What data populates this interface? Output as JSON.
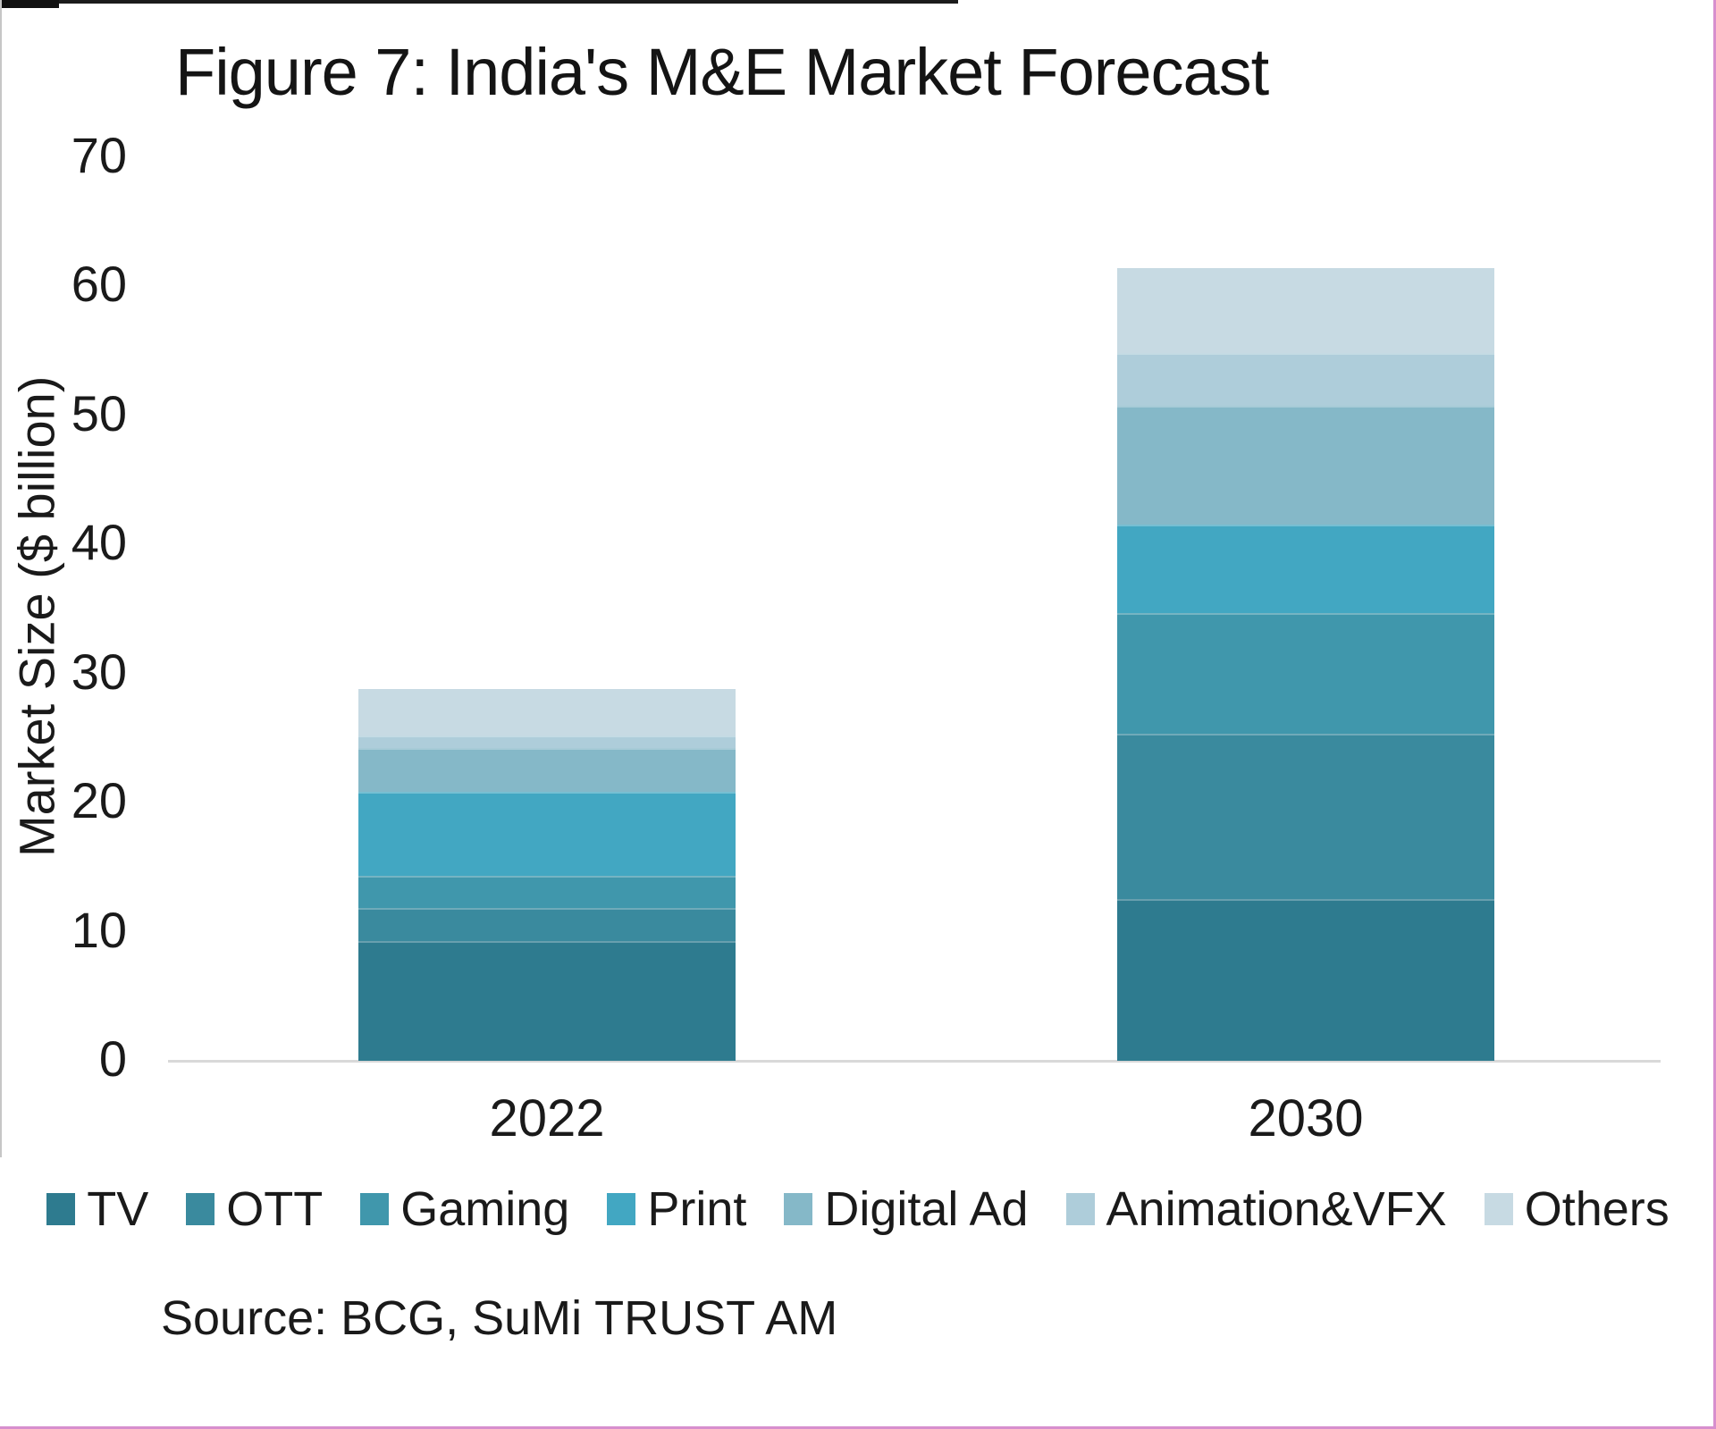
{
  "title": "Figure 7: India's M&E Market Forecast",
  "source": "Source: BCG, SuMi TRUST AM",
  "chart_data": {
    "type": "bar",
    "stacked": true,
    "title": "Figure 7: India's M&E Market Forecast",
    "xlabel": "",
    "ylabel": "Market Size ($ billion)",
    "ylim": [
      0,
      70
    ],
    "yticks": [
      0,
      10,
      20,
      30,
      40,
      50,
      60,
      70
    ],
    "grid": false,
    "legend_position": "bottom",
    "categories": [
      "2022",
      "2030"
    ],
    "series": [
      {
        "name": "TV",
        "color": "#2e7b8f",
        "values": [
          9.3,
          12.5
        ]
      },
      {
        "name": "OTT",
        "color": "#3a8a9e",
        "values": [
          2.5,
          12.8
        ]
      },
      {
        "name": "Gaming",
        "color": "#4097ac",
        "values": [
          2.5,
          9.4
        ]
      },
      {
        "name": "Print",
        "color": "#42a7c2",
        "values": [
          6.5,
          6.8
        ]
      },
      {
        "name": "Digital Ad",
        "color": "#85b8c8",
        "values": [
          3.4,
          9.2
        ]
      },
      {
        "name": "Animation&VFX",
        "color": "#aecdda",
        "values": [
          1.0,
          4.1
        ]
      },
      {
        "name": "Others",
        "color": "#c7dae3",
        "values": [
          3.6,
          6.6
        ]
      }
    ],
    "totals": [
      28.8,
      61.4
    ]
  },
  "axis_color": "#d9d9d9",
  "text_color": "#1a1a1a"
}
